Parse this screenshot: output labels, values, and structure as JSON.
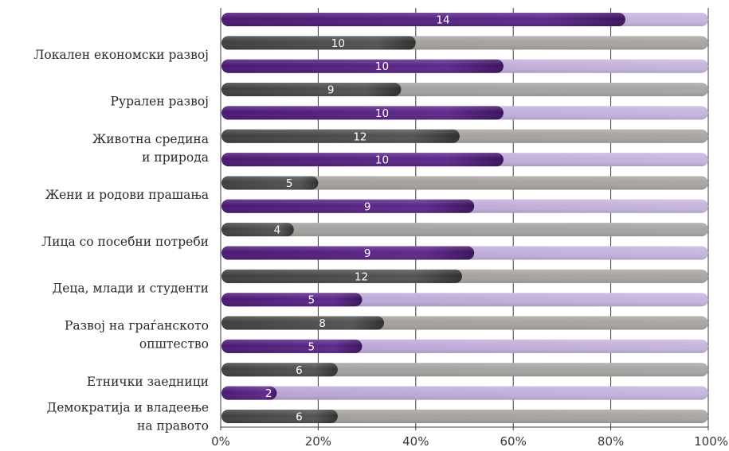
{
  "chart_data": {
    "type": "bar",
    "orientation": "horizontal",
    "stacked_percent": true,
    "grid": true,
    "categories": [
      "Локален економски развој",
      "Рурален развој",
      "Животна средина и природа",
      "Жени и родови прашања",
      "Лица со посебни потреби",
      "Деца, млади и студенти",
      "Развој на граѓанското општество",
      "Етнички заедници",
      "Демократија и владеење на правото"
    ],
    "category_label_lines": [
      [
        "Локален економски развој"
      ],
      [
        "Рурален развој"
      ],
      [
        "Животна средина",
        "и природа"
      ],
      [
        "Жени и родови прашања"
      ],
      [
        "Лица со посебни потреби"
      ],
      [
        "Деца, млади и студенти"
      ],
      [
        "Развој на граѓанското",
        "општество"
      ],
      [
        "Етнички заедници"
      ],
      [
        "Демократија и владеење",
        "на правото"
      ]
    ],
    "bars": [
      {
        "category_index": -1,
        "series": "purple",
        "label": "14",
        "percent": 83
      },
      {
        "category_index": 0,
        "series": "gray",
        "label": "10",
        "percent": 40
      },
      {
        "category_index": 0,
        "series": "purple",
        "label": "10",
        "percent": 58
      },
      {
        "category_index": 1,
        "series": "gray",
        "label": "9",
        "percent": 37
      },
      {
        "category_index": 1,
        "series": "purple",
        "label": "10",
        "percent": 58
      },
      {
        "category_index": 2,
        "series": "gray",
        "label": "12",
        "percent": 49
      },
      {
        "category_index": 2,
        "series": "purple",
        "label": "10",
        "percent": 58
      },
      {
        "category_index": 3,
        "series": "gray",
        "label": "5",
        "percent": 20
      },
      {
        "category_index": 3,
        "series": "purple",
        "label": "9",
        "percent": 52
      },
      {
        "category_index": 4,
        "series": "gray",
        "label": "4",
        "percent": 15
      },
      {
        "category_index": 4,
        "series": "purple",
        "label": "9",
        "percent": 52
      },
      {
        "category_index": 5,
        "series": "gray",
        "label": "12",
        "percent": 49.5
      },
      {
        "category_index": 5,
        "series": "purple",
        "label": "5",
        "percent": 29
      },
      {
        "category_index": 6,
        "series": "gray",
        "label": "8",
        "percent": 33.5
      },
      {
        "category_index": 6,
        "series": "purple",
        "label": "5",
        "percent": 29
      },
      {
        "category_index": 7,
        "series": "gray",
        "label": "6",
        "percent": 24
      },
      {
        "category_index": 7,
        "series": "purple",
        "label": "2",
        "percent": 11.5
      },
      {
        "category_index": 8,
        "series": "gray",
        "label": "6",
        "percent": 24
      }
    ],
    "x_ticks": [
      "0%",
      "20%",
      "40%",
      "60%",
      "80%",
      "100%"
    ],
    "xlim": [
      0,
      100
    ],
    "colors": {
      "purple_dark": "#5a2486",
      "purple_light": "#b9a5d6",
      "gray_dark": "#4a4a48",
      "gray_light": "#a3a09d",
      "grid": "#3a3a3a",
      "label_text": "#2b2b2b"
    }
  }
}
